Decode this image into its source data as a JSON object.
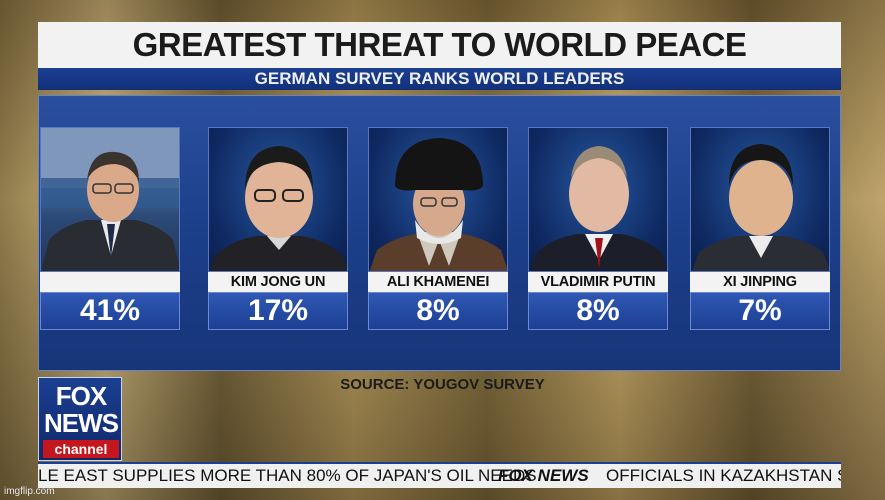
{
  "header": {
    "title": "GREATEST THREAT TO WORLD PEACE",
    "subtitle": "GERMAN SURVEY RANKS WORLD LEADERS"
  },
  "chart_data": {
    "type": "bar",
    "categories": [
      "",
      "KIM JONG UN",
      "ALI KHAMENEI",
      "VLADIMIR PUTIN",
      "XI JINPING"
    ],
    "values": [
      41,
      17,
      8,
      8,
      7
    ],
    "value_labels": [
      "41%",
      "17%",
      "8%",
      "8%",
      "7%"
    ],
    "title": "GREATEST THREAT TO WORLD PEACE",
    "subtitle": "GERMAN SURVEY RANKS WORLD LEADERS"
  },
  "source": "SOURCE: YOUGOV SURVEY",
  "logo": {
    "line1": "FOX",
    "line2": "NEWS",
    "line3": "channel"
  },
  "ticker": {
    "left": "LE EAST SUPPLIES MORE THAN 80% OF JAPAN'S OIL NEEDS",
    "brand": "FOX NEWS",
    "right": "OFFICIALS IN KAZAKHSTAN SA"
  },
  "watermark": "imgflip.com",
  "colors": {
    "panel_blue": "#1c3f8a",
    "title_bg": "#f2f2f2",
    "channel_red": "#c4161c"
  }
}
